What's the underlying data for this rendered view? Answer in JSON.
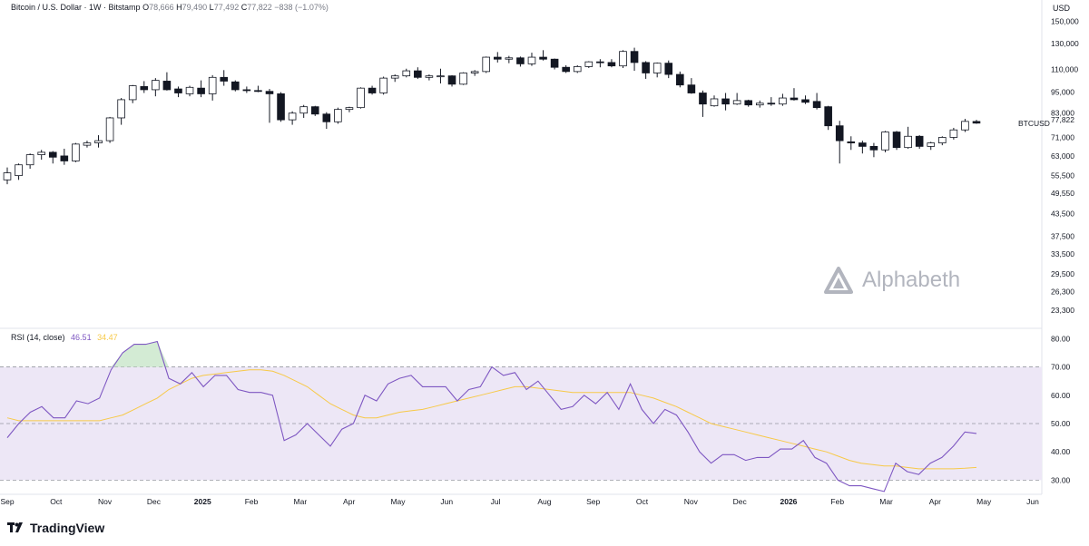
{
  "header": {
    "symbol_title": "Bitcoin / U.S. Dollar · 1W · Bitstamp",
    "open_label": "O",
    "open_value": "78,666",
    "high_label": "H",
    "high_value": "79,490",
    "low_label": "L",
    "low_value": "77,492",
    "close_label": "C",
    "close_value": "77,822",
    "change": "−838 (−1.07%)",
    "currency": "USD"
  },
  "price_badge": {
    "ticker": "BTCUSD",
    "value": "77,822"
  },
  "rsi_legend": {
    "label": "RSI (14, close)",
    "rsi_value": "46.51",
    "ma_value": "34.47"
  },
  "watermark": {
    "text": "Alphabeth",
    "icon": "alphabeth-triangle-logo"
  },
  "footer": {
    "brand": "TradingView",
    "icon": "tradingview-logo"
  },
  "colors": {
    "bull": "#ffffff",
    "bear": "#131722",
    "wick": "#131722",
    "rsi_line": "#7e57c2",
    "rsi_ma": "#f7c948",
    "rsi_band": "#ede7f6",
    "overbought_fill": "#c8e6c9",
    "grid_dash": "#9598a1"
  },
  "chart_data": [
    {
      "type": "candlestick",
      "title": "Bitcoin / U.S. Dollar · 1W · Bitstamp",
      "y_scale": "log",
      "ylim": [
        21000,
        170000
      ],
      "y_ticks": [
        150000,
        130000,
        110000,
        95000,
        83000,
        71000,
        63000,
        55500,
        49550,
        43500,
        37500,
        33500,
        29500,
        26300,
        23300
      ],
      "y_tick_labels": [
        "150,000",
        "130,000",
        "110,000",
        "95,000",
        "83,000",
        "71,000",
        "63,000",
        "55,500",
        "49,550",
        "43,500",
        "37,500",
        "33,500",
        "29,500",
        "26,300",
        "23,300"
      ],
      "x_tick_labels": [
        "Sep",
        "Oct",
        "Nov",
        "Dec",
        "2025",
        "Feb",
        "Mar",
        "Apr",
        "May",
        "Jun",
        "Jul",
        "Aug",
        "Sep",
        "Oct",
        "Nov",
        "Dec",
        "2026",
        "Feb",
        "Mar",
        "Apr",
        "May",
        "Jun"
      ],
      "x_tick_bold": [
        "2025",
        "2026"
      ],
      "candles": [
        {
          "o": 54000,
          "h": 58500,
          "l": 52500,
          "c": 56500
        },
        {
          "o": 55500,
          "h": 60000,
          "l": 54000,
          "c": 59500
        },
        {
          "o": 59500,
          "h": 64000,
          "l": 58000,
          "c": 63500
        },
        {
          "o": 63500,
          "h": 65500,
          "l": 61500,
          "c": 64500
        },
        {
          "o": 64500,
          "h": 65000,
          "l": 60000,
          "c": 62500
        },
        {
          "o": 63000,
          "h": 66000,
          "l": 59500,
          "c": 61000
        },
        {
          "o": 61000,
          "h": 68500,
          "l": 60500,
          "c": 68000
        },
        {
          "o": 67500,
          "h": 69500,
          "l": 66500,
          "c": 68500
        },
        {
          "o": 68500,
          "h": 72000,
          "l": 66500,
          "c": 69500
        },
        {
          "o": 69500,
          "h": 81000,
          "l": 68500,
          "c": 80500
        },
        {
          "o": 80500,
          "h": 91500,
          "l": 77000,
          "c": 90500
        },
        {
          "o": 90500,
          "h": 99500,
          "l": 88500,
          "c": 99000
        },
        {
          "o": 98500,
          "h": 102000,
          "l": 94500,
          "c": 96500
        },
        {
          "o": 96500,
          "h": 104000,
          "l": 92500,
          "c": 102500
        },
        {
          "o": 102000,
          "h": 108000,
          "l": 96000,
          "c": 96500
        },
        {
          "o": 97000,
          "h": 98500,
          "l": 92000,
          "c": 94500
        },
        {
          "o": 94000,
          "h": 99000,
          "l": 92500,
          "c": 98000
        },
        {
          "o": 97500,
          "h": 102500,
          "l": 92000,
          "c": 94000
        },
        {
          "o": 94000,
          "h": 106000,
          "l": 90000,
          "c": 104500
        },
        {
          "o": 104500,
          "h": 109500,
          "l": 99000,
          "c": 102000
        },
        {
          "o": 101500,
          "h": 102500,
          "l": 95500,
          "c": 96500
        },
        {
          "o": 96500,
          "h": 98500,
          "l": 94500,
          "c": 96000
        },
        {
          "o": 96000,
          "h": 99000,
          "l": 95000,
          "c": 95500
        },
        {
          "o": 95500,
          "h": 97000,
          "l": 78000,
          "c": 94000
        },
        {
          "o": 94000,
          "h": 95000,
          "l": 78500,
          "c": 79500
        },
        {
          "o": 79500,
          "h": 84000,
          "l": 77000,
          "c": 83000
        },
        {
          "o": 83000,
          "h": 87500,
          "l": 80500,
          "c": 86500
        },
        {
          "o": 86500,
          "h": 87000,
          "l": 81500,
          "c": 82500
        },
        {
          "o": 82500,
          "h": 83500,
          "l": 75000,
          "c": 78500
        },
        {
          "o": 78500,
          "h": 86000,
          "l": 77500,
          "c": 85000
        },
        {
          "o": 85000,
          "h": 86500,
          "l": 83500,
          "c": 86000
        },
        {
          "o": 86000,
          "h": 98000,
          "l": 85500,
          "c": 97500
        },
        {
          "o": 97500,
          "h": 99000,
          "l": 93500,
          "c": 94500
        },
        {
          "o": 94500,
          "h": 105000,
          "l": 93500,
          "c": 104000
        },
        {
          "o": 104000,
          "h": 106500,
          "l": 101500,
          "c": 105500
        },
        {
          "o": 105500,
          "h": 110500,
          "l": 104500,
          "c": 109000
        },
        {
          "o": 109000,
          "h": 111500,
          "l": 103500,
          "c": 104500
        },
        {
          "o": 104500,
          "h": 106500,
          "l": 102500,
          "c": 105500
        },
        {
          "o": 105500,
          "h": 110500,
          "l": 100500,
          "c": 105500
        },
        {
          "o": 105500,
          "h": 106000,
          "l": 98500,
          "c": 100000
        },
        {
          "o": 100000,
          "h": 108000,
          "l": 99500,
          "c": 107500
        },
        {
          "o": 107500,
          "h": 109500,
          "l": 105500,
          "c": 108500
        },
        {
          "o": 108500,
          "h": 119500,
          "l": 107500,
          "c": 119000
        },
        {
          "o": 119000,
          "h": 123000,
          "l": 115000,
          "c": 117500
        },
        {
          "o": 117500,
          "h": 120000,
          "l": 114500,
          "c": 118500
        },
        {
          "o": 118500,
          "h": 119500,
          "l": 112000,
          "c": 114000
        },
        {
          "o": 114000,
          "h": 122500,
          "l": 112500,
          "c": 119000
        },
        {
          "o": 119000,
          "h": 124500,
          "l": 116500,
          "c": 117500
        },
        {
          "o": 117500,
          "h": 118000,
          "l": 110000,
          "c": 111500
        },
        {
          "o": 111500,
          "h": 113000,
          "l": 107500,
          "c": 108500
        },
        {
          "o": 108500,
          "h": 113000,
          "l": 107500,
          "c": 112000
        },
        {
          "o": 112000,
          "h": 116000,
          "l": 111000,
          "c": 115500
        },
        {
          "o": 115500,
          "h": 117500,
          "l": 111500,
          "c": 115000
        },
        {
          "o": 115000,
          "h": 117500,
          "l": 111500,
          "c": 112500
        },
        {
          "o": 112500,
          "h": 124500,
          "l": 111000,
          "c": 123500
        },
        {
          "o": 123500,
          "h": 126500,
          "l": 109000,
          "c": 115000
        },
        {
          "o": 115000,
          "h": 116000,
          "l": 103500,
          "c": 107500
        },
        {
          "o": 107500,
          "h": 115000,
          "l": 104500,
          "c": 114500
        },
        {
          "o": 114500,
          "h": 116500,
          "l": 104000,
          "c": 106500
        },
        {
          "o": 106500,
          "h": 108500,
          "l": 98000,
          "c": 99500
        },
        {
          "o": 99500,
          "h": 104000,
          "l": 94000,
          "c": 94500
        },
        {
          "o": 94500,
          "h": 96000,
          "l": 81000,
          "c": 88000
        },
        {
          "o": 87000,
          "h": 93000,
          "l": 86500,
          "c": 91000
        },
        {
          "o": 91000,
          "h": 94500,
          "l": 84500,
          "c": 88000
        },
        {
          "o": 88000,
          "h": 94500,
          "l": 87500,
          "c": 90000
        },
        {
          "o": 90000,
          "h": 90500,
          "l": 86500,
          "c": 87500
        },
        {
          "o": 87500,
          "h": 90000,
          "l": 86000,
          "c": 88500
        },
        {
          "o": 88500,
          "h": 92000,
          "l": 87000,
          "c": 88000
        },
        {
          "o": 88000,
          "h": 94000,
          "l": 87000,
          "c": 91500
        },
        {
          "o": 91500,
          "h": 97500,
          "l": 90000,
          "c": 90500
        },
        {
          "o": 90500,
          "h": 93000,
          "l": 88000,
          "c": 89000
        },
        {
          "o": 89500,
          "h": 94500,
          "l": 85000,
          "c": 86000
        },
        {
          "o": 86500,
          "h": 87000,
          "l": 74500,
          "c": 76500
        },
        {
          "o": 76500,
          "h": 79000,
          "l": 60000,
          "c": 69500
        },
        {
          "o": 69000,
          "h": 71500,
          "l": 65500,
          "c": 68500
        },
        {
          "o": 68500,
          "h": 69500,
          "l": 64000,
          "c": 67000
        },
        {
          "o": 67000,
          "h": 68500,
          "l": 62500,
          "c": 65500
        },
        {
          "o": 65500,
          "h": 74000,
          "l": 64500,
          "c": 73500
        },
        {
          "o": 73500,
          "h": 74000,
          "l": 65500,
          "c": 66500
        },
        {
          "o": 66500,
          "h": 76000,
          "l": 66000,
          "c": 71500
        },
        {
          "o": 71500,
          "h": 72000,
          "l": 66000,
          "c": 67000
        },
        {
          "o": 67000,
          "h": 69000,
          "l": 65500,
          "c": 68500
        },
        {
          "o": 68500,
          "h": 71500,
          "l": 67500,
          "c": 71000
        },
        {
          "o": 71000,
          "h": 75500,
          "l": 70000,
          "c": 74500
        },
        {
          "o": 74500,
          "h": 80000,
          "l": 73500,
          "c": 78700
        },
        {
          "o": 78666,
          "h": 79490,
          "l": 77492,
          "c": 77822
        }
      ]
    },
    {
      "type": "line",
      "title": "RSI (14, close)",
      "ylim": [
        25,
        83
      ],
      "y_ticks": [
        80,
        70,
        60,
        50,
        40,
        30
      ],
      "y_tick_labels": [
        "80.00",
        "70.00",
        "60.00",
        "50.00",
        "40.00",
        "30.00"
      ],
      "bands": {
        "upper": 70,
        "middle": 50,
        "lower": 30
      },
      "series": [
        {
          "name": "RSI",
          "values": [
            45,
            50,
            54,
            56,
            52,
            52,
            58,
            57,
            59,
            69,
            75,
            78,
            78,
            79,
            66,
            64,
            68,
            63,
            67,
            67,
            62,
            61,
            61,
            60,
            44,
            46,
            50,
            46,
            42,
            48,
            50,
            60,
            58,
            64,
            66,
            67,
            63,
            63,
            63,
            58,
            62,
            63,
            70,
            67,
            68,
            62,
            65,
            60,
            55,
            56,
            60,
            57,
            61,
            55,
            64,
            55,
            50,
            55,
            53,
            47,
            40,
            36,
            39,
            39,
            37,
            38,
            38,
            41,
            41,
            44,
            38,
            36,
            30,
            28,
            28,
            27,
            26,
            36,
            33,
            32,
            36,
            38,
            42,
            47,
            46.5
          ]
        },
        {
          "name": "MA",
          "values": [
            52,
            51,
            51,
            51,
            51,
            51,
            51,
            51,
            51,
            52,
            53,
            55,
            57,
            59,
            62,
            64,
            66,
            67,
            67.5,
            68,
            68.5,
            69,
            69,
            68.5,
            67,
            65,
            63,
            60,
            57,
            55,
            53,
            52,
            52,
            53,
            54,
            54.5,
            55,
            56,
            57,
            58,
            59,
            60,
            61,
            62,
            63,
            63,
            62.5,
            62,
            61.5,
            61,
            61,
            61,
            61,
            61,
            61,
            60,
            59,
            57.5,
            56,
            54,
            52,
            50,
            49,
            48,
            47,
            46,
            45,
            44,
            43,
            42,
            41,
            40,
            38.5,
            37,
            36,
            35.5,
            35,
            35,
            34.5,
            34,
            34,
            34,
            34,
            34.2,
            34.47
          ]
        }
      ]
    }
  ]
}
